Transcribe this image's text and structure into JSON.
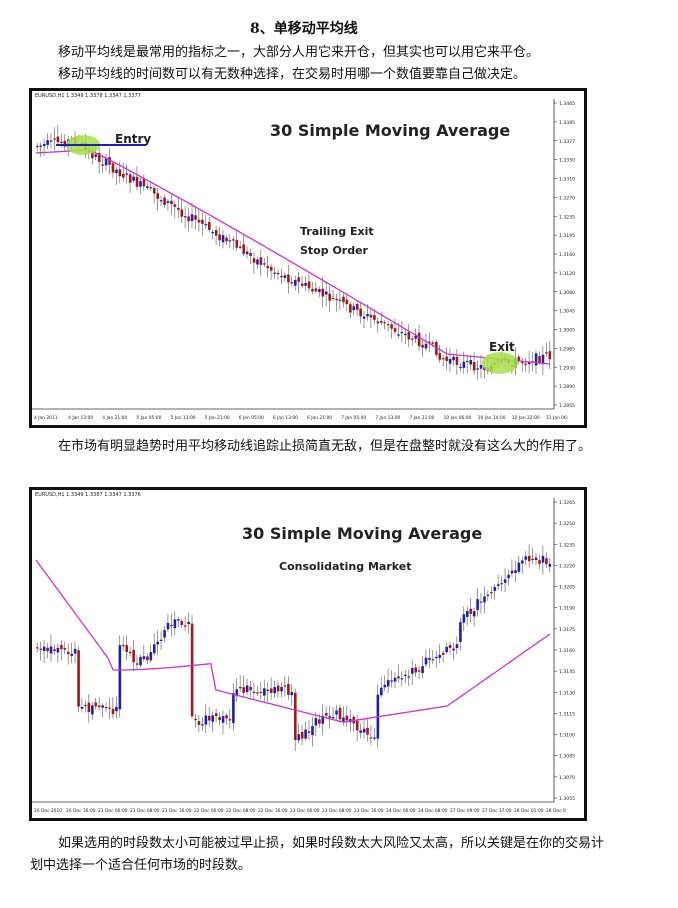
{
  "document": {
    "heading": "8、单移动平均线",
    "para1_line1": "移动平均线是最常用的指标之一，大部分人用它来开仓，但其实也可以用它来平仓。",
    "para1_line2": "移动平均线的时间数可以有无数种选择，在交易时用哪一个数值要靠自己做决定。",
    "para2": "在市场有明显趋势时用平均移动线追踪止损简直无敌，但是在盘整时就没有这么大的作用了。",
    "para3": "如果选用的时段数太小可能被过早止损，如果时段数太大风险又太高，所以关键是在你的交易计划中选择一个适合任何市场的时段数。"
  },
  "charts": {
    "chart1": {
      "symbol": "EURUSD,H1 1.3349 1.3378 1.3347 1.3377",
      "title": "30 Simple Moving Average",
      "annotations": {
        "entry": "Entry",
        "trailing_line1": "Trailing Exit",
        "trailing_line2": "Stop Order",
        "exit": "Exit"
      },
      "price_labels": [
        "1.3465",
        "1.3385",
        "1.3377",
        "1.3350",
        "1.3310",
        "1.3270",
        "1.3235",
        "1.3195",
        "1.3160",
        "1.3120",
        "1.3080",
        "1.3045",
        "1.3005",
        "1.2965",
        "1.2930",
        "1.2890",
        "1.2855"
      ],
      "time_labels": [
        "4 Jan 2011",
        "4 Jan 13:00",
        "4 Jan 21:00",
        "5 Jan 05:00",
        "5 Jan 13:00",
        "5 Jan 21:00",
        "6 Jan 05:00",
        "6 Jan 13:00",
        "6 Jan 21:00",
        "7 Jan 05:00",
        "7 Jan 13:00",
        "7 Jan 21:00",
        "10 Jan 06:00",
        "10 Jan 14:00",
        "10 Jan 22:00",
        "11 Jan 06:"
      ]
    },
    "chart2": {
      "symbol": "EURUSD,H1 1.3349 1.3387 1.3347 1.3376",
      "title": "30 Simple Moving Average",
      "subtitle": "Consolidating Market",
      "price_labels": [
        "1.3265",
        "1.3250",
        "1.3235",
        "1.3220",
        "1.3205",
        "1.3190",
        "1.3175",
        "1.3160",
        "1.3145",
        "1.3130",
        "1.3115",
        "1.3100",
        "1.3085",
        "1.3070",
        "1.3055"
      ],
      "time_labels": [
        "20 Dec 2010",
        "20 Dec 16:00",
        "21 Dec 00:00",
        "21 Dec 08:00",
        "21 Dec 16:00",
        "22 Dec 00:00",
        "22 Dec 08:00",
        "22 Dec 16:00",
        "23 Dec 00:00",
        "23 Dec 08:00",
        "23 Dec 16:00",
        "24 Dec 00:00",
        "24 Dec 08:00",
        "27 Dec 09:00",
        "27 Dec 17:00",
        "28 Dec 01:00",
        "28 Dec 0"
      ]
    },
    "colors": {
      "bull": "#1f1fb8",
      "bear": "#a01818",
      "ma": "#cc33cc",
      "marker": "#a8e04a",
      "entry_line": "#1f1fb8"
    }
  }
}
